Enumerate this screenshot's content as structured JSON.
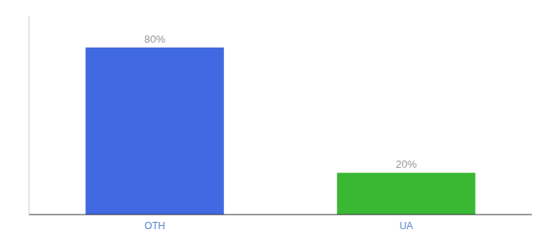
{
  "chart_data": {
    "type": "bar",
    "categories": [
      "OTH",
      "UA"
    ],
    "values": [
      80,
      20
    ],
    "value_labels": [
      "80%",
      "20%"
    ],
    "colors": [
      "#4169e1",
      "#3ab834"
    ],
    "ylim": [
      0,
      95
    ],
    "yticks": [],
    "data_labels": true,
    "tick_labels": "x",
    "grid": false
  }
}
